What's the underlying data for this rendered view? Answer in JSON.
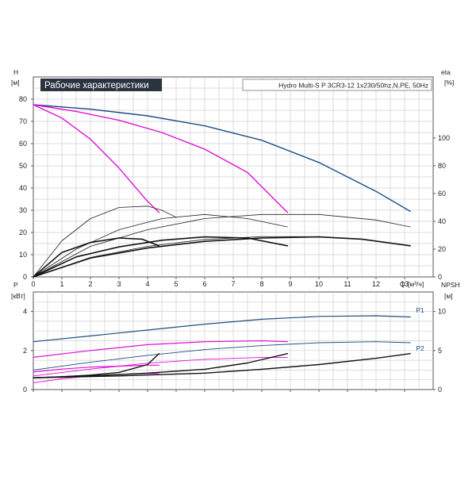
{
  "chart_data": [
    {
      "type": "line",
      "id": "performance",
      "title": "Рабочие характеристики",
      "subtitle": "Hydro Multi-S P 3CR3-12 1x230/50hz,N,PE, 50Hz",
      "xlabel": "Q",
      "xunit": "[м³/ч]",
      "ylabel": "H",
      "yunit": "[м]",
      "y2label": "eta",
      "y2unit": "[%]",
      "xlim": [
        0,
        14
      ],
      "ylim": [
        0,
        90
      ],
      "y2lim": [
        0,
        144
      ],
      "xticks": [
        0,
        1,
        2,
        3,
        4,
        5,
        6,
        7,
        8,
        9,
        10,
        11,
        12,
        13
      ],
      "yticks": [
        0,
        10,
        20,
        30,
        40,
        50,
        60,
        70,
        80
      ],
      "y2ticks": [
        0,
        20,
        40,
        60,
        80,
        100
      ],
      "grid": true,
      "series": [
        {
          "axis": "y",
          "color": "#1c4e80",
          "width": 1.4,
          "points": [
            [
              0,
              77.5
            ],
            [
              2,
              75.5
            ],
            [
              4,
              72.5
            ],
            [
              6,
              68
            ],
            [
              8,
              61.5
            ],
            [
              10,
              51.5
            ],
            [
              12,
              38.5
            ],
            [
              13.2,
              29.5
            ]
          ]
        },
        {
          "axis": "y",
          "color": "#e010d8",
          "width": 1.4,
          "points": [
            [
              0,
              77.5
            ],
            [
              1.5,
              74.5
            ],
            [
              3,
              70.5
            ],
            [
              4.5,
              65
            ],
            [
              6,
              57.5
            ],
            [
              7.5,
              47
            ],
            [
              8.9,
              29
            ]
          ]
        },
        {
          "axis": "y",
          "color": "#e010d8",
          "width": 1.4,
          "points": [
            [
              0,
              77.5
            ],
            [
              1,
              71.5
            ],
            [
              2,
              62
            ],
            [
              3,
              49
            ],
            [
              4,
              34
            ],
            [
              4.4,
              29
            ]
          ]
        },
        {
          "axis": "y2",
          "color": "#222222",
          "width": 0.8,
          "points": [
            [
              0,
              0
            ],
            [
              1,
              26
            ],
            [
              2,
              42
            ],
            [
              3,
              50
            ],
            [
              4,
              51
            ],
            [
              4.5,
              48
            ],
            [
              5,
              43
            ]
          ]
        },
        {
          "axis": "y2",
          "color": "#222222",
          "width": 0.8,
          "points": [
            [
              0,
              0
            ],
            [
              1.5,
              20
            ],
            [
              3,
              34
            ],
            [
              4.5,
              42
            ],
            [
              6,
              45
            ],
            [
              7.5,
              42
            ],
            [
              8.9,
              36
            ]
          ]
        },
        {
          "axis": "y2",
          "color": "#222222",
          "width": 0.8,
          "points": [
            [
              0,
              0
            ],
            [
              2,
              22
            ],
            [
              4,
              34
            ],
            [
              6,
              42
            ],
            [
              8,
              45
            ],
            [
              10,
              45
            ],
            [
              12,
              41
            ],
            [
              13.2,
              36
            ]
          ]
        },
        {
          "axis": "y2",
          "color": "#222222",
          "width": 0.8,
          "points": [
            [
              0,
              0
            ],
            [
              2,
              14
            ],
            [
              4,
              22
            ],
            [
              6,
              27
            ],
            [
              8,
              29
            ],
            [
              10,
              29
            ]
          ]
        },
        {
          "axis": "y",
          "color": "#111111",
          "width": 1.6,
          "points": [
            [
              0,
              0
            ],
            [
              1,
              11
            ],
            [
              2,
              15.5
            ],
            [
              3,
              17.5
            ],
            [
              3.8,
              17
            ],
            [
              4.4,
              14
            ]
          ]
        },
        {
          "axis": "y",
          "color": "#111111",
          "width": 1.6,
          "points": [
            [
              0,
              0
            ],
            [
              1.5,
              9
            ],
            [
              3,
              13.5
            ],
            [
              4.5,
              16.5
            ],
            [
              6,
              18
            ],
            [
              7.5,
              17.5
            ],
            [
              8.9,
              14
            ]
          ]
        },
        {
          "axis": "y",
          "color": "#111111",
          "width": 1.6,
          "points": [
            [
              0,
              0
            ],
            [
              2,
              8.5
            ],
            [
              4,
              13
            ],
            [
              6,
              16
            ],
            [
              8,
              17.5
            ],
            [
              10,
              18
            ],
            [
              11.5,
              17
            ],
            [
              13.2,
              14
            ]
          ]
        }
      ]
    },
    {
      "type": "line",
      "id": "power",
      "xlim": [
        0,
        14
      ],
      "ylabel": "P",
      "yunit": "[кВт]",
      "ylim": [
        0,
        5
      ],
      "yticks": [
        0,
        2,
        4
      ],
      "y2label": "NPSH",
      "y2unit": "[м]",
      "y2lim": [
        0,
        12.5
      ],
      "y2ticks": [
        0,
        5,
        10
      ],
      "grid": true,
      "labels": [
        {
          "text": "P1",
          "x": 13.4,
          "y": 3.95
        },
        {
          "text": "P2",
          "x": 13.4,
          "y": 2.0
        }
      ],
      "series": [
        {
          "axis": "y",
          "color": "#1c4e80",
          "width": 1.2,
          "points": [
            [
              0,
              2.45
            ],
            [
              2,
              2.75
            ],
            [
              4,
              3.05
            ],
            [
              6,
              3.35
            ],
            [
              8,
              3.6
            ],
            [
              10,
              3.75
            ],
            [
              12,
              3.78
            ],
            [
              13.2,
              3.72
            ]
          ]
        },
        {
          "axis": "y",
          "color": "#1c4e80",
          "width": 0.9,
          "points": [
            [
              0,
              1.0
            ],
            [
              2,
              1.4
            ],
            [
              4,
              1.75
            ],
            [
              6,
              2.05
            ],
            [
              8,
              2.25
            ],
            [
              10,
              2.4
            ],
            [
              12,
              2.45
            ],
            [
              13.2,
              2.4
            ]
          ]
        },
        {
          "axis": "y",
          "color": "#e010d8",
          "width": 1.2,
          "points": [
            [
              0,
              1.65
            ],
            [
              2,
              2.0
            ],
            [
              4,
              2.3
            ],
            [
              6,
              2.45
            ],
            [
              8,
              2.5
            ],
            [
              8.9,
              2.45
            ]
          ]
        },
        {
          "axis": "y",
          "color": "#e010d8",
          "width": 0.9,
          "points": [
            [
              0,
              0.7
            ],
            [
              2,
              1.05
            ],
            [
              4,
              1.35
            ],
            [
              6,
              1.55
            ],
            [
              8,
              1.65
            ],
            [
              8.9,
              1.65
            ]
          ]
        },
        {
          "axis": "y",
          "color": "#e010d8",
          "width": 1.2,
          "points": [
            [
              0,
              0.9
            ],
            [
              1,
              1.05
            ],
            [
              2,
              1.15
            ],
            [
              3,
              1.2
            ],
            [
              4,
              1.25
            ],
            [
              4.4,
              1.25
            ]
          ]
        },
        {
          "axis": "y",
          "color": "#e010d8",
          "width": 0.9,
          "points": [
            [
              0,
              0.35
            ],
            [
              1,
              0.55
            ],
            [
              2,
              0.7
            ],
            [
              3,
              0.78
            ],
            [
              4,
              0.82
            ],
            [
              4.4,
              0.82
            ]
          ]
        },
        {
          "axis": "y2",
          "color": "#111111",
          "width": 1.4,
          "points": [
            [
              0,
              1.5
            ],
            [
              3,
              1.75
            ],
            [
              6,
              2.1
            ],
            [
              8,
              2.6
            ],
            [
              10,
              3.2
            ],
            [
              12,
              4.0
            ],
            [
              13.2,
              4.6
            ]
          ]
        },
        {
          "axis": "y2",
          "color": "#111111",
          "width": 1.4,
          "points": [
            [
              0,
              1.5
            ],
            [
              2,
              1.75
            ],
            [
              4,
              2.1
            ],
            [
              6,
              2.6
            ],
            [
              7.5,
              3.4
            ],
            [
              8.9,
              4.6
            ]
          ]
        },
        {
          "axis": "y2",
          "color": "#111111",
          "width": 1.4,
          "points": [
            [
              0,
              1.5
            ],
            [
              1,
              1.65
            ],
            [
              2,
              1.85
            ],
            [
              3,
              2.2
            ],
            [
              4,
              3.2
            ],
            [
              4.4,
              4.6
            ]
          ]
        }
      ]
    }
  ]
}
